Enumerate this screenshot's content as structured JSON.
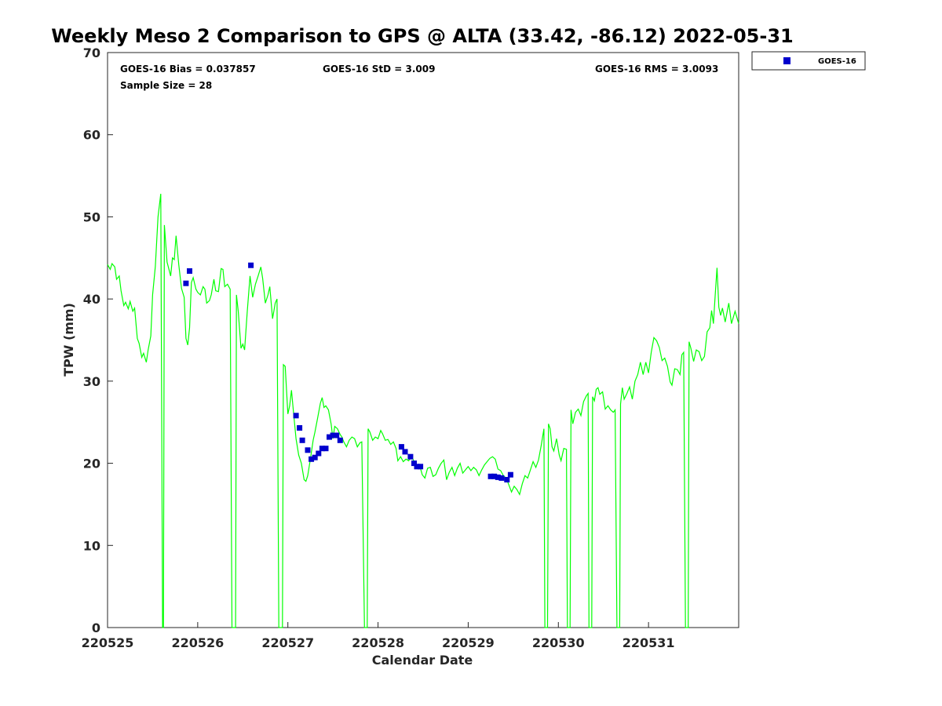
{
  "chart_data": {
    "type": "line",
    "title": "Weekly Meso 2 Comparison to GPS @ ALTA (33.42, -86.12) 2022-05-31",
    "xlabel": "Calendar Date",
    "ylabel": "TPW (mm)",
    "xlim": [
      0,
      7
    ],
    "ylim": [
      0,
      70
    ],
    "x_ticks": [
      {
        "value": 0,
        "label": "220525"
      },
      {
        "value": 1,
        "label": "220526"
      },
      {
        "value": 2,
        "label": "220527"
      },
      {
        "value": 3,
        "label": "220528"
      },
      {
        "value": 4,
        "label": "220529"
      },
      {
        "value": 5,
        "label": "220530"
      },
      {
        "value": 6,
        "label": "220531"
      }
    ],
    "y_ticks": [
      0,
      10,
      20,
      30,
      40,
      50,
      60,
      70
    ],
    "grid": false,
    "legend_position": "top-right-outside",
    "stats": {
      "bias": "GOES-16 Bias = 0.037857",
      "std": "GOES-16 StD = 3.009",
      "rms": "GOES-16 RMS = 3.0093",
      "sample": "Sample Size = 28"
    },
    "series": [
      {
        "kind": "line",
        "color": "#00ff00",
        "points": [
          [
            0.0,
            44.2
          ],
          [
            0.03,
            43.6
          ],
          [
            0.05,
            44.3
          ],
          [
            0.08,
            43.9
          ],
          [
            0.1,
            42.4
          ],
          [
            0.13,
            42.8
          ],
          [
            0.15,
            41.0
          ],
          [
            0.18,
            39.2
          ],
          [
            0.2,
            39.6
          ],
          [
            0.23,
            38.8
          ],
          [
            0.25,
            39.7
          ],
          [
            0.28,
            38.5
          ],
          [
            0.3,
            38.9
          ],
          [
            0.33,
            35.2
          ],
          [
            0.35,
            34.6
          ],
          [
            0.38,
            32.9
          ],
          [
            0.4,
            33.4
          ],
          [
            0.43,
            32.3
          ],
          [
            0.45,
            33.8
          ],
          [
            0.48,
            35.5
          ],
          [
            0.5,
            40.5
          ],
          [
            0.53,
            44.0
          ],
          [
            0.56,
            50.0
          ],
          [
            0.59,
            52.8
          ],
          [
            0.61,
            0.0
          ],
          [
            0.62,
            0.0
          ],
          [
            0.63,
            49.0
          ],
          [
            0.66,
            44.5
          ],
          [
            0.7,
            42.8
          ],
          [
            0.72,
            45.0
          ],
          [
            0.74,
            44.8
          ],
          [
            0.76,
            47.7
          ],
          [
            0.79,
            44.2
          ],
          [
            0.82,
            41.3
          ],
          [
            0.85,
            40.2
          ],
          [
            0.87,
            35.2
          ],
          [
            0.89,
            34.4
          ],
          [
            0.91,
            36.5
          ],
          [
            0.93,
            42.0
          ],
          [
            0.95,
            42.6
          ],
          [
            0.98,
            41.2
          ],
          [
            1.0,
            40.8
          ],
          [
            1.03,
            40.5
          ],
          [
            1.06,
            41.5
          ],
          [
            1.08,
            41.2
          ],
          [
            1.1,
            39.5
          ],
          [
            1.13,
            39.8
          ],
          [
            1.15,
            40.5
          ],
          [
            1.18,
            42.4
          ],
          [
            1.2,
            41.0
          ],
          [
            1.23,
            40.9
          ],
          [
            1.26,
            43.7
          ],
          [
            1.28,
            43.6
          ],
          [
            1.3,
            41.5
          ],
          [
            1.33,
            41.8
          ],
          [
            1.36,
            41.2
          ],
          [
            1.38,
            0.0
          ],
          [
            1.42,
            0.0
          ],
          [
            1.43,
            40.5
          ],
          [
            1.45,
            38.5
          ],
          [
            1.48,
            34.0
          ],
          [
            1.5,
            34.5
          ],
          [
            1.52,
            33.8
          ],
          [
            1.55,
            38.5
          ],
          [
            1.58,
            42.8
          ],
          [
            1.61,
            40.2
          ],
          [
            1.64,
            41.8
          ],
          [
            1.67,
            42.8
          ],
          [
            1.7,
            43.9
          ],
          [
            1.72,
            42.5
          ],
          [
            1.75,
            39.5
          ],
          [
            1.78,
            40.5
          ],
          [
            1.8,
            41.5
          ],
          [
            1.83,
            37.6
          ],
          [
            1.86,
            39.5
          ],
          [
            1.88,
            40.0
          ],
          [
            1.9,
            0.0
          ],
          [
            1.94,
            0.0
          ],
          [
            1.95,
            32.0
          ],
          [
            1.97,
            31.8
          ],
          [
            2.0,
            26.0
          ],
          [
            2.02,
            27.0
          ],
          [
            2.04,
            28.9
          ],
          [
            2.06,
            26.5
          ],
          [
            2.09,
            23.0
          ],
          [
            2.12,
            21.0
          ],
          [
            2.15,
            20.0
          ],
          [
            2.18,
            18.0
          ],
          [
            2.2,
            17.8
          ],
          [
            2.22,
            18.5
          ],
          [
            2.25,
            20.5
          ],
          [
            2.28,
            22.8
          ],
          [
            2.3,
            23.8
          ],
          [
            2.33,
            25.5
          ],
          [
            2.36,
            27.3
          ],
          [
            2.38,
            28.0
          ],
          [
            2.4,
            26.8
          ],
          [
            2.42,
            27.0
          ],
          [
            2.45,
            26.5
          ],
          [
            2.48,
            24.8
          ],
          [
            2.5,
            23.0
          ],
          [
            2.52,
            24.5
          ],
          [
            2.55,
            24.2
          ],
          [
            2.58,
            23.5
          ],
          [
            2.6,
            23.2
          ],
          [
            2.62,
            22.6
          ],
          [
            2.65,
            22.0
          ],
          [
            2.68,
            22.8
          ],
          [
            2.71,
            23.2
          ],
          [
            2.74,
            23.0
          ],
          [
            2.77,
            22.0
          ],
          [
            2.8,
            22.5
          ],
          [
            2.82,
            22.6
          ],
          [
            2.85,
            0.0
          ],
          [
            2.88,
            0.0
          ],
          [
            2.89,
            24.2
          ],
          [
            2.91,
            23.8
          ],
          [
            2.94,
            22.8
          ],
          [
            2.97,
            23.2
          ],
          [
            3.0,
            23.0
          ],
          [
            3.03,
            24.0
          ],
          [
            3.05,
            23.6
          ],
          [
            3.08,
            22.8
          ],
          [
            3.11,
            22.9
          ],
          [
            3.14,
            22.3
          ],
          [
            3.17,
            22.6
          ],
          [
            3.2,
            21.8
          ],
          [
            3.22,
            20.3
          ],
          [
            3.25,
            20.8
          ],
          [
            3.28,
            20.2
          ],
          [
            3.31,
            20.5
          ],
          [
            3.34,
            20.3
          ],
          [
            3.37,
            20.9
          ],
          [
            3.4,
            20.2
          ],
          [
            3.43,
            19.6
          ],
          [
            3.46,
            19.8
          ],
          [
            3.49,
            18.6
          ],
          [
            3.52,
            18.2
          ],
          [
            3.55,
            19.4
          ],
          [
            3.58,
            19.5
          ],
          [
            3.61,
            18.4
          ],
          [
            3.64,
            18.6
          ],
          [
            3.67,
            19.4
          ],
          [
            3.7,
            20.0
          ],
          [
            3.73,
            20.4
          ],
          [
            3.76,
            18.0
          ],
          [
            3.79,
            18.9
          ],
          [
            3.82,
            19.5
          ],
          [
            3.85,
            18.5
          ],
          [
            3.88,
            19.4
          ],
          [
            3.91,
            20.0
          ],
          [
            3.94,
            18.8
          ],
          [
            3.97,
            19.2
          ],
          [
            4.0,
            19.6
          ],
          [
            4.03,
            19.1
          ],
          [
            4.06,
            19.5
          ],
          [
            4.09,
            19.2
          ],
          [
            4.12,
            18.5
          ],
          [
            4.15,
            19.2
          ],
          [
            4.18,
            19.8
          ],
          [
            4.21,
            20.2
          ],
          [
            4.24,
            20.6
          ],
          [
            4.27,
            20.8
          ],
          [
            4.3,
            20.5
          ],
          [
            4.33,
            19.3
          ],
          [
            4.36,
            19.1
          ],
          [
            4.39,
            18.5
          ],
          [
            4.42,
            18.2
          ],
          [
            4.45,
            17.4
          ],
          [
            4.48,
            16.5
          ],
          [
            4.51,
            17.2
          ],
          [
            4.54,
            16.8
          ],
          [
            4.57,
            16.2
          ],
          [
            4.6,
            17.5
          ],
          [
            4.63,
            18.5
          ],
          [
            4.66,
            18.2
          ],
          [
            4.69,
            19.2
          ],
          [
            4.72,
            20.2
          ],
          [
            4.75,
            19.5
          ],
          [
            4.78,
            20.4
          ],
          [
            4.81,
            22.2
          ],
          [
            4.84,
            24.2
          ],
          [
            4.85,
            0.0
          ],
          [
            4.88,
            0.0
          ],
          [
            4.89,
            24.8
          ],
          [
            4.91,
            24.2
          ],
          [
            4.93,
            22.0
          ],
          [
            4.95,
            21.5
          ],
          [
            4.98,
            23.0
          ],
          [
            5.01,
            21.0
          ],
          [
            5.03,
            20.3
          ],
          [
            5.06,
            21.8
          ],
          [
            5.09,
            21.7
          ],
          [
            5.1,
            0.0
          ],
          [
            5.13,
            0.0
          ],
          [
            5.14,
            26.5
          ],
          [
            5.16,
            24.8
          ],
          [
            5.19,
            26.2
          ],
          [
            5.22,
            26.6
          ],
          [
            5.25,
            25.8
          ],
          [
            5.28,
            27.5
          ],
          [
            5.31,
            28.2
          ],
          [
            5.33,
            28.5
          ],
          [
            5.34,
            0.0
          ],
          [
            5.37,
            0.0
          ],
          [
            5.38,
            28.1
          ],
          [
            5.4,
            27.6
          ],
          [
            5.42,
            29.0
          ],
          [
            5.44,
            29.2
          ],
          [
            5.46,
            28.4
          ],
          [
            5.49,
            28.7
          ],
          [
            5.52,
            26.6
          ],
          [
            5.55,
            27.0
          ],
          [
            5.58,
            26.5
          ],
          [
            5.61,
            26.2
          ],
          [
            5.63,
            26.5
          ],
          [
            5.65,
            0.0
          ],
          [
            5.68,
            0.0
          ],
          [
            5.69,
            27.2
          ],
          [
            5.71,
            29.2
          ],
          [
            5.73,
            27.8
          ],
          [
            5.76,
            28.5
          ],
          [
            5.79,
            29.3
          ],
          [
            5.82,
            27.8
          ],
          [
            5.85,
            30.0
          ],
          [
            5.88,
            30.8
          ],
          [
            5.91,
            32.3
          ],
          [
            5.94,
            30.8
          ],
          [
            5.97,
            32.3
          ],
          [
            6.0,
            31.0
          ],
          [
            6.03,
            33.5
          ],
          [
            6.06,
            35.3
          ],
          [
            6.09,
            34.9
          ],
          [
            6.12,
            34.1
          ],
          [
            6.15,
            32.5
          ],
          [
            6.18,
            32.8
          ],
          [
            6.21,
            31.8
          ],
          [
            6.24,
            29.9
          ],
          [
            6.26,
            29.5
          ],
          [
            6.29,
            31.5
          ],
          [
            6.32,
            31.4
          ],
          [
            6.35,
            30.8
          ],
          [
            6.37,
            33.2
          ],
          [
            6.39,
            33.5
          ],
          [
            6.41,
            0.0
          ],
          [
            6.44,
            0.0
          ],
          [
            6.45,
            34.8
          ],
          [
            6.47,
            34.0
          ],
          [
            6.5,
            32.4
          ],
          [
            6.53,
            33.8
          ],
          [
            6.56,
            33.6
          ],
          [
            6.59,
            32.5
          ],
          [
            6.62,
            33.0
          ],
          [
            6.65,
            36.0
          ],
          [
            6.68,
            36.5
          ],
          [
            6.7,
            38.6
          ],
          [
            6.72,
            37.0
          ],
          [
            6.74,
            40.5
          ],
          [
            6.76,
            43.8
          ],
          [
            6.78,
            39.0
          ],
          [
            6.8,
            38.0
          ],
          [
            6.82,
            38.9
          ],
          [
            6.85,
            37.2
          ],
          [
            6.89,
            39.5
          ],
          [
            6.92,
            37.0
          ],
          [
            6.96,
            38.5
          ],
          [
            7.0,
            37.0
          ]
        ]
      },
      {
        "kind": "scatter",
        "name": "GOES-16",
        "color": "#0000cd",
        "points": [
          [
            0.87,
            41.9
          ],
          [
            0.91,
            43.4
          ],
          [
            1.59,
            44.1
          ],
          [
            2.09,
            25.8
          ],
          [
            2.13,
            24.3
          ],
          [
            2.16,
            22.8
          ],
          [
            2.22,
            21.6
          ],
          [
            2.26,
            20.5
          ],
          [
            2.3,
            20.7
          ],
          [
            2.34,
            21.2
          ],
          [
            2.38,
            21.8
          ],
          [
            2.42,
            21.8
          ],
          [
            2.46,
            23.2
          ],
          [
            2.5,
            23.4
          ],
          [
            2.54,
            23.4
          ],
          [
            2.58,
            22.8
          ],
          [
            3.26,
            22.0
          ],
          [
            3.3,
            21.4
          ],
          [
            3.36,
            20.8
          ],
          [
            3.4,
            20.0
          ],
          [
            3.43,
            19.6
          ],
          [
            3.47,
            19.6
          ],
          [
            4.25,
            18.4
          ],
          [
            4.29,
            18.4
          ],
          [
            4.33,
            18.3
          ],
          [
            4.37,
            18.2
          ],
          [
            4.43,
            18.0
          ],
          [
            4.47,
            18.6
          ]
        ]
      }
    ]
  }
}
